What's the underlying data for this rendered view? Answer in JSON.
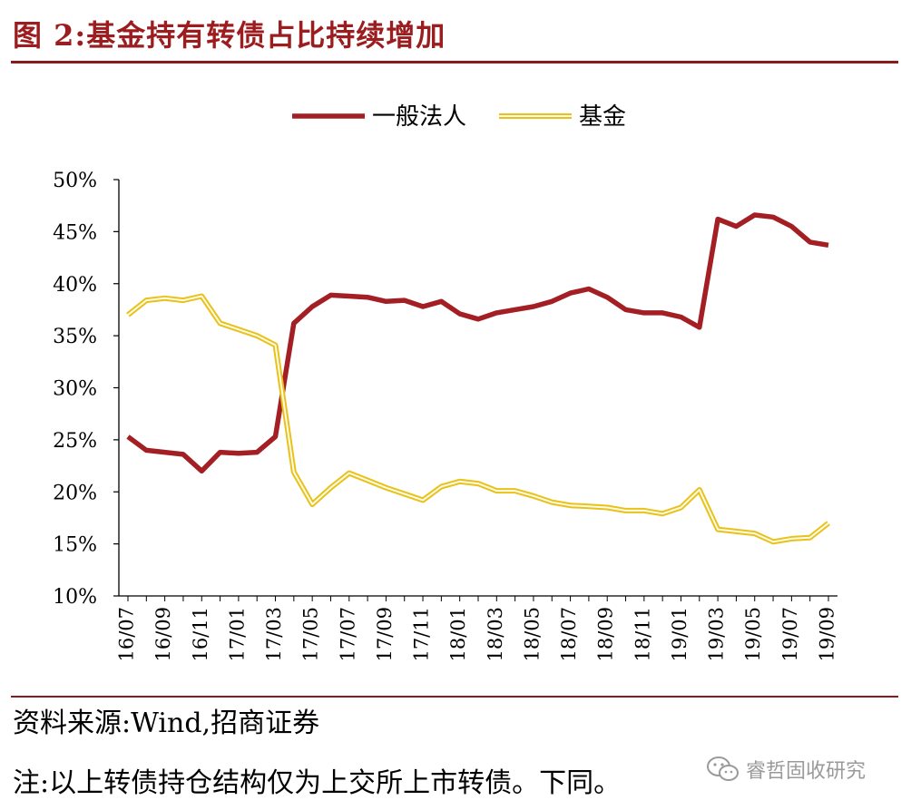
{
  "figure": {
    "title": "图 2:基金持有转债占比持续增加",
    "source": "资料来源:Wind,招商证券",
    "note": "注:以上转债持仓结构仅为上交所上市转债。下同。"
  },
  "watermark": {
    "text": "睿哲固收研究",
    "icon": "wechat-icon"
  },
  "colors": {
    "accent": "#9b1d20",
    "series_1": "#a31f24",
    "series_2": "#e8c21a"
  },
  "chart_data": {
    "type": "line",
    "title": "图 2:基金持有转债占比持续增加",
    "xlabel": "",
    "ylabel": "",
    "ylim": [
      0.1,
      0.5
    ],
    "yticks": [
      "10%",
      "15%",
      "20%",
      "25%",
      "30%",
      "35%",
      "40%",
      "45%",
      "50%"
    ],
    "xtick_labels": [
      "16/07",
      "16/09",
      "16/11",
      "17/01",
      "17/03",
      "17/05",
      "17/07",
      "17/09",
      "17/11",
      "18/01",
      "18/03",
      "18/05",
      "18/07",
      "18/09",
      "18/11",
      "19/01",
      "19/03",
      "19/05",
      "19/07",
      "19/09"
    ],
    "x": [
      "16/07",
      "16/08",
      "16/09",
      "16/10",
      "16/11",
      "16/12",
      "17/01",
      "17/02",
      "17/03",
      "17/04",
      "17/05",
      "17/06",
      "17/07",
      "17/08",
      "17/09",
      "17/10",
      "17/11",
      "17/12",
      "18/01",
      "18/02",
      "18/03",
      "18/04",
      "18/05",
      "18/06",
      "18/07",
      "18/08",
      "18/09",
      "18/10",
      "18/11",
      "18/12",
      "19/01",
      "19/02",
      "19/03",
      "19/04",
      "19/05",
      "19/06",
      "19/07",
      "19/08",
      "19/09"
    ],
    "legend_position": "top-center",
    "grid": false,
    "series": [
      {
        "name": "一般法人",
        "style": "solid",
        "values": [
          0.253,
          0.24,
          0.238,
          0.236,
          0.22,
          0.238,
          0.237,
          0.238,
          0.253,
          0.362,
          0.378,
          0.389,
          0.388,
          0.387,
          0.383,
          0.384,
          0.378,
          0.383,
          0.371,
          0.366,
          0.372,
          0.375,
          0.378,
          0.383,
          0.391,
          0.395,
          0.387,
          0.375,
          0.372,
          0.372,
          0.368,
          0.358,
          0.462,
          0.455,
          0.466,
          0.464,
          0.455,
          0.44,
          0.437
        ]
      },
      {
        "name": "基金",
        "style": "double",
        "values": [
          0.37,
          0.384,
          0.386,
          0.384,
          0.388,
          0.362,
          0.356,
          0.35,
          0.341,
          0.219,
          0.188,
          0.204,
          0.218,
          0.211,
          0.204,
          0.198,
          0.192,
          0.205,
          0.21,
          0.208,
          0.201,
          0.201,
          0.196,
          0.19,
          0.187,
          0.186,
          0.185,
          0.182,
          0.182,
          0.179,
          0.185,
          0.202,
          0.164,
          0.162,
          0.16,
          0.152,
          0.155,
          0.156,
          0.17
        ]
      }
    ]
  }
}
